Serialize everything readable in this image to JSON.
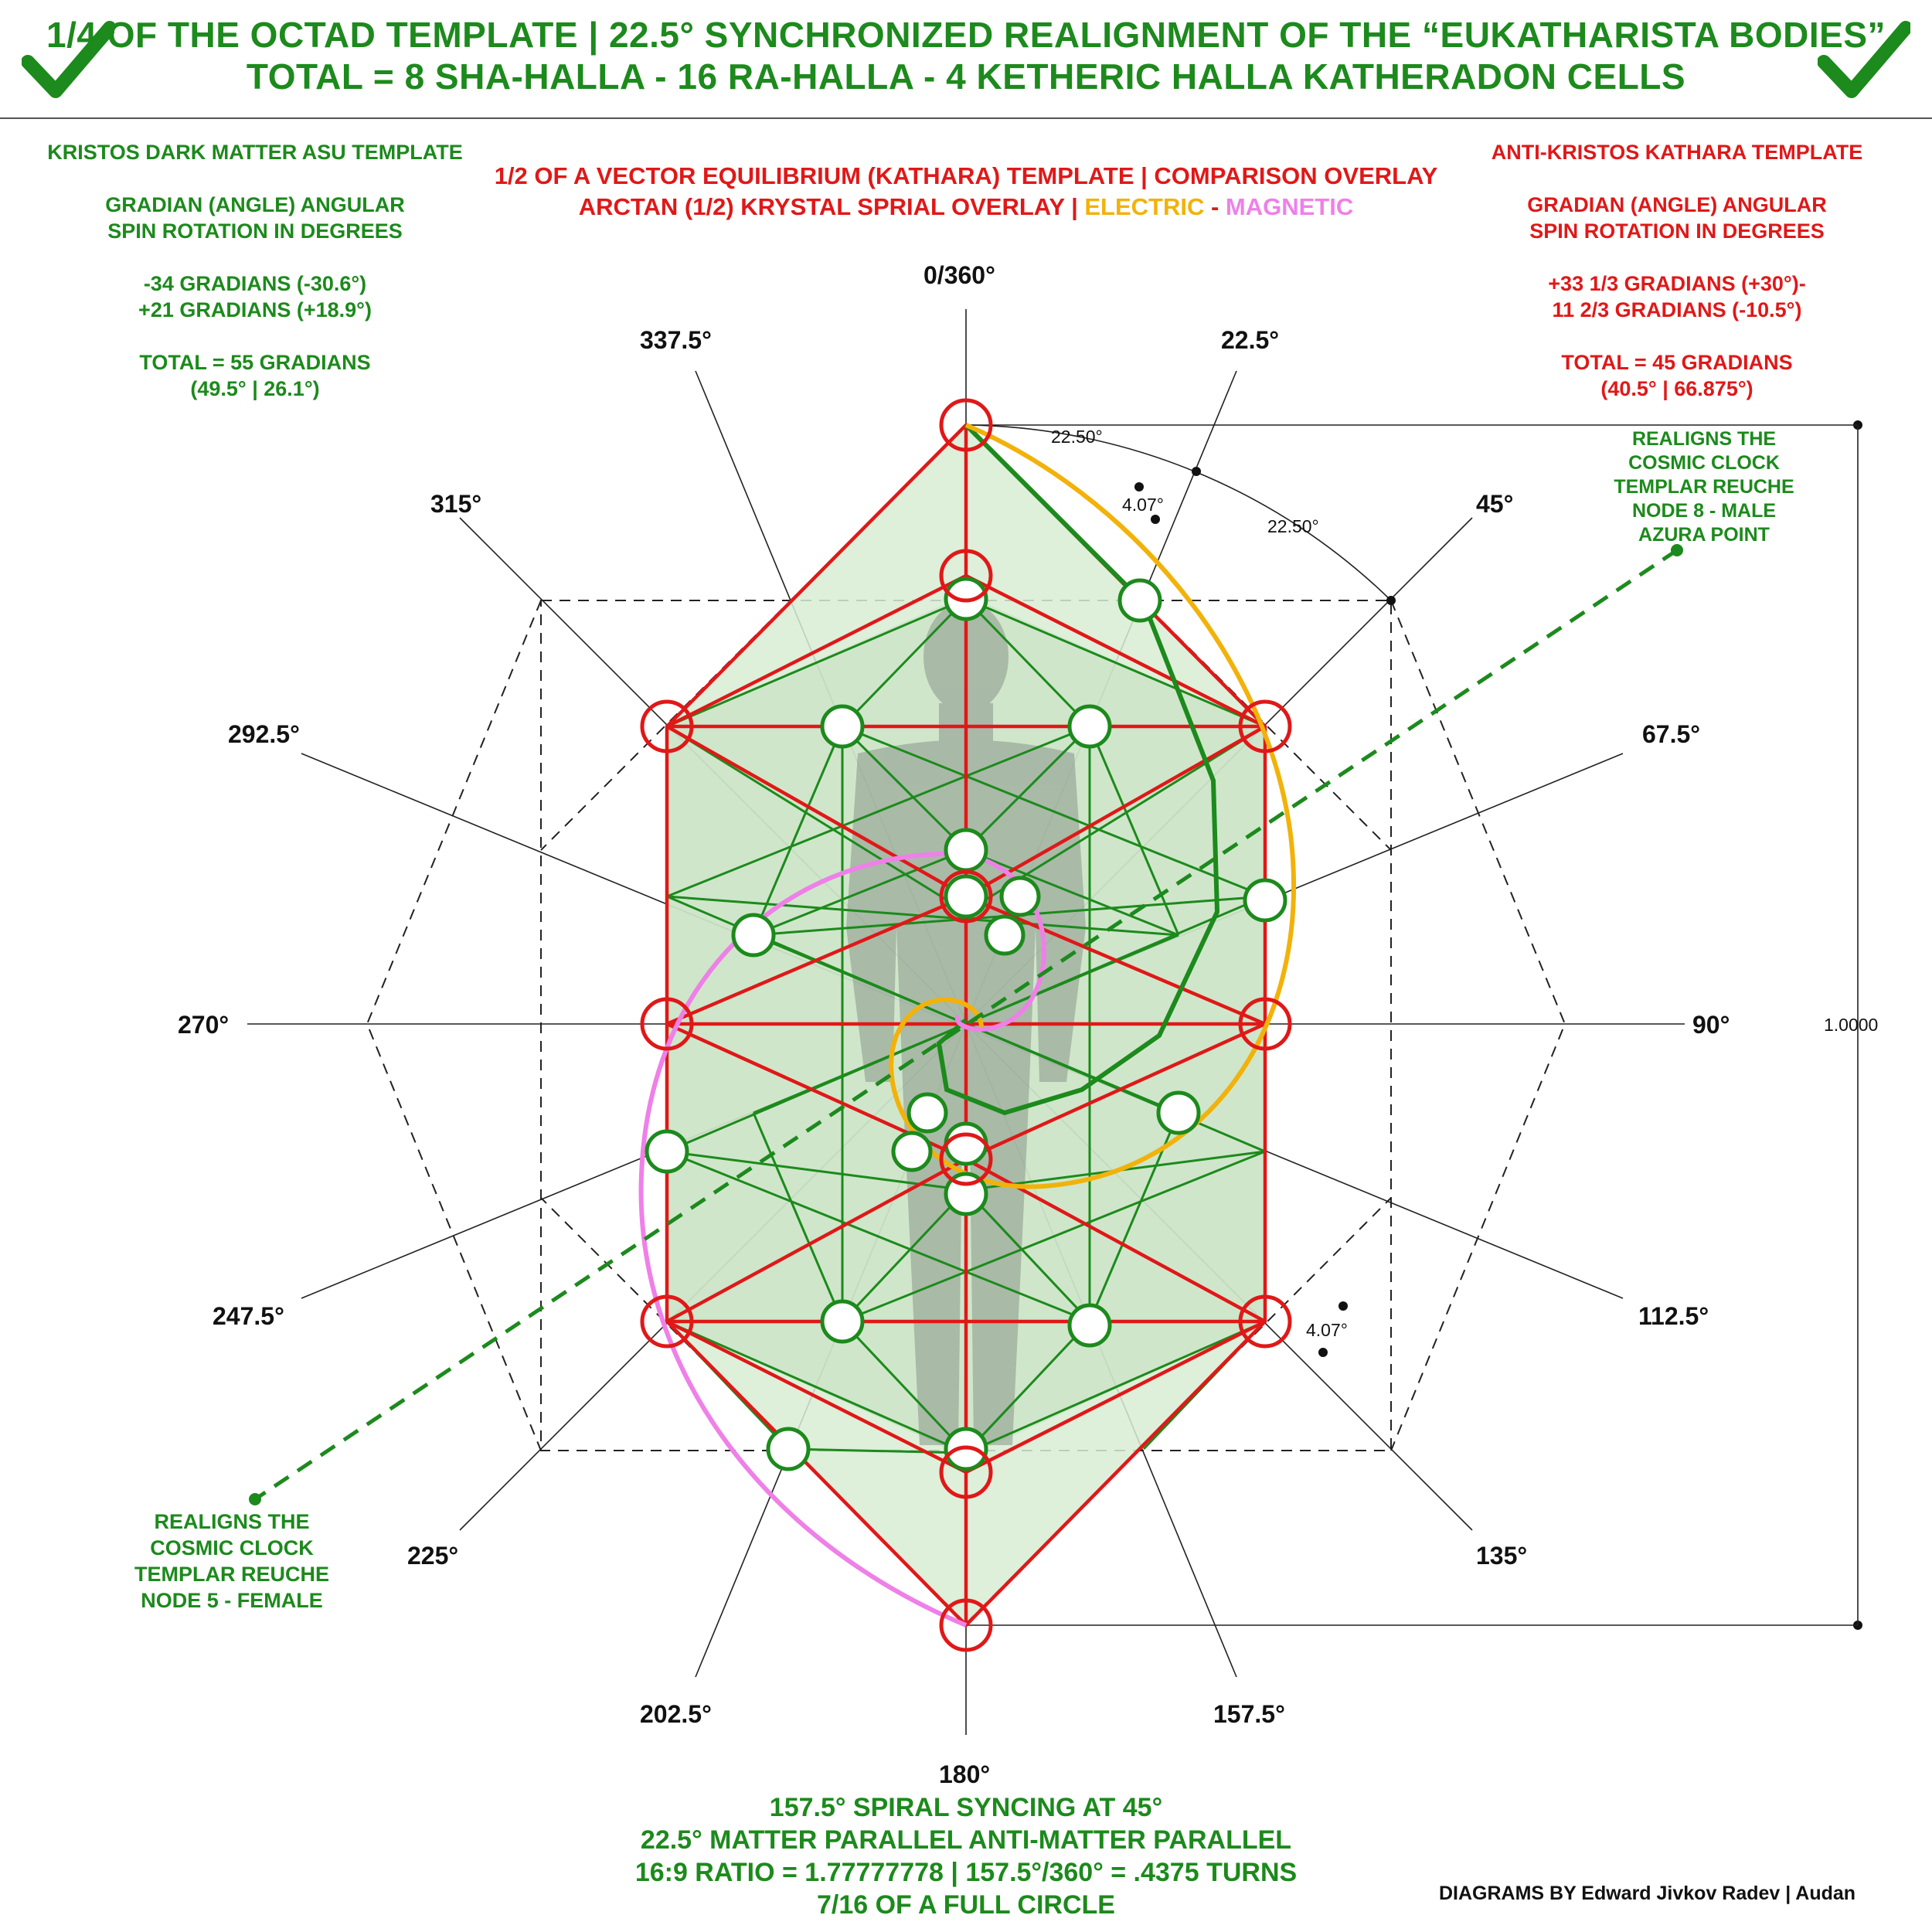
{
  "header": {
    "title_line1": "1/4 OF THE OCTAD TEMPLATE | 22.5° SYNCHRONIZED REALIGNMENT OF THE “EUKATHARISTA BODIES”",
    "title_line2": "TOTAL = 8 SHA-HALLA - 16 RA-HALLA - 4 KETHERIC HALLA KATHERADON CELLS",
    "icon_left": "checkmark-icon",
    "icon_right": "checkmark-icon"
  },
  "left_panel": {
    "heading": "KRISTOS DARK MATTER ASU TEMPLATE",
    "line2": "GRADIAN (ANGLE) ANGULAR",
    "line3": "SPIN ROTATION IN DEGREES",
    "line4": "-34 GRADIANS (-30.6°)",
    "line5": "+21 GRADIANS (+18.9°)",
    "line6": "TOTAL = 55 GRADIANS",
    "line7": "(49.5° | 26.1°)"
  },
  "right_panel": {
    "heading": "ANTI-KRISTOS KATHARA TEMPLATE",
    "line2": "GRADIAN (ANGLE) ANGULAR",
    "line3": "SPIN ROTATION IN DEGREES",
    "line4": "+33 1/3 GRADIANS (+30°)-",
    "line5": "11 2/3 GRADIANS (-10.5°)",
    "line6": "TOTAL = 45 GRADIANS",
    "line7": "(40.5° | 66.875°)"
  },
  "center_header": {
    "line1": "1/2 OF A VECTOR EQUILIBRIUM (KATHARA) TEMPLATE | COMPARISON OVERLAY",
    "line2_prefix": "ARCTAN (1/2) KRYSTAL SPRIAL OVERLAY | ",
    "electric": "ELECTRIC",
    "separator": " - ",
    "magnetic": "MAGNETIC"
  },
  "angles": [
    "0/360°",
    "22.5°",
    "45°",
    "67.5°",
    "90°",
    "112.5°",
    "135°",
    "157.5°",
    "180°",
    "202.5°",
    "225°",
    "247.5°",
    "270°",
    "292.5°",
    "315°",
    "337.5°"
  ],
  "annotations": {
    "arc_a": "22.50°",
    "arc_b": "22.50°",
    "small_angle_top": "4.07°",
    "small_angle_bottom": "4.07°",
    "dimension": "1.0000"
  },
  "callout_male": {
    "line1": "REALIGNS THE",
    "line2": "COSMIC CLOCK",
    "line3": "TEMPLAR REUCHE",
    "line4": "NODE 8 - MALE",
    "line5": "AZURA POINT"
  },
  "callout_female": {
    "line1": "REALIGNS THE",
    "line2": "COSMIC CLOCK",
    "line3": "TEMPLAR REUCHE",
    "line4": "NODE 5 - FEMALE"
  },
  "footer": {
    "line1": "157.5° SPIRAL SYNCING AT 45°",
    "line2": "22.5° MATTER PARALLEL ANTI-MATTER PARALLEL",
    "line3": "16:9 RATIO = 1.77777778 | 157.5°/360° = .4375 TURNS",
    "line4": "7/16 OF A FULL CIRCLE",
    "credit": "DIAGRAMS BY Edward Jivkov Radev | Audan"
  },
  "colors": {
    "green": "#1c8a1c",
    "red": "#e01818",
    "electric": "#f2b20a",
    "magnetic": "#ee80e8",
    "fill": "#d8ecd4"
  }
}
